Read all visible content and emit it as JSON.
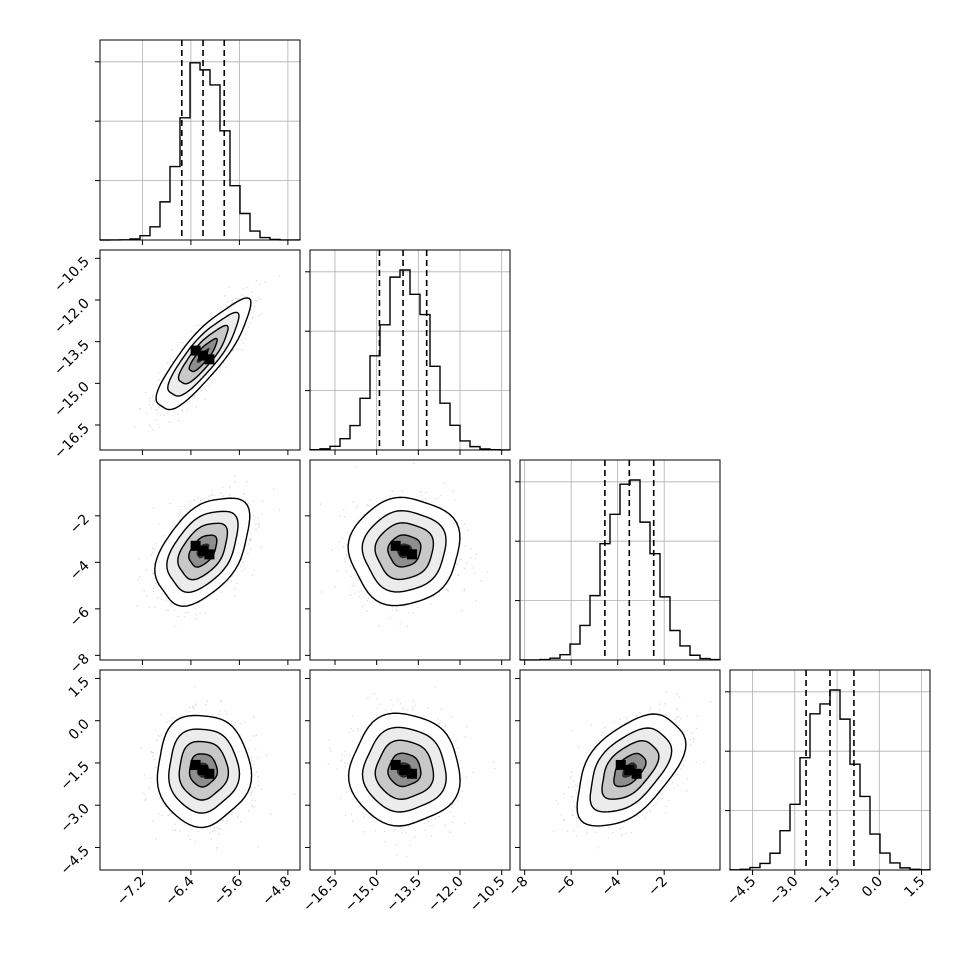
{
  "chart_data": {
    "type": "corner",
    "n_params": 4,
    "grid": true,
    "quantiles": [
      0.16,
      0.5,
      0.84
    ],
    "params": [
      {
        "center": -6.2,
        "sigma": 0.35,
        "range": [
          -7.9,
          -4.6
        ],
        "tick_values": [
          -7.2,
          -6.4,
          -5.6,
          -4.8
        ],
        "tick_labels": [
          "−7.2",
          "−6.4",
          "−5.6",
          "−4.8"
        ],
        "quantile_values": [
          -6.55,
          -6.2,
          -5.85
        ]
      },
      {
        "center": -14.0,
        "sigma": 0.9,
        "range": [
          -17.4,
          -10.2
        ],
        "tick_values": [
          -16.5,
          -15.0,
          -13.5,
          -12.0,
          -10.5
        ],
        "tick_labels": [
          "−16.5",
          "−15.0",
          "−13.5",
          "−12.0",
          "−10.5"
        ],
        "quantile_values": [
          -14.9,
          -14.05,
          -13.2
        ]
      },
      {
        "center": -3.5,
        "sigma": 1.05,
        "range": [
          -8.2,
          0.4
        ],
        "tick_values": [
          -8,
          -6,
          -4,
          -2
        ],
        "tick_labels": [
          "−8",
          "−6",
          "−4",
          "−2"
        ],
        "quantile_values": [
          -4.55,
          -3.5,
          -2.45
        ]
      },
      {
        "center": -1.75,
        "sigma": 0.9,
        "range": [
          -5.3,
          1.8
        ],
        "tick_values": [
          -4.5,
          -3.0,
          -1.5,
          0.0,
          1.5
        ],
        "tick_labels": [
          "−4.5",
          "−3.0",
          "−1.5",
          "0.0",
          "1.5"
        ],
        "quantile_values": [
          -2.6,
          -1.75,
          -0.9
        ]
      }
    ],
    "correlations": [
      {
        "i": 1,
        "j": 0,
        "rho": 0.85
      },
      {
        "i": 2,
        "j": 0,
        "rho": 0.45
      },
      {
        "i": 2,
        "j": 1,
        "rho": 0.05
      },
      {
        "i": 3,
        "j": 0,
        "rho": 0.0
      },
      {
        "i": 3,
        "j": 1,
        "rho": 0.0
      },
      {
        "i": 3,
        "j": 2,
        "rho": 0.5
      }
    ]
  }
}
